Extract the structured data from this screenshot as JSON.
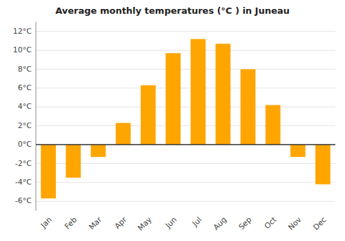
{
  "chart_data": {
    "type": "bar",
    "title": "Average monthly temperatures (°C ) in Juneau",
    "categories": [
      "Jan",
      "Feb",
      "Mar",
      "Apr",
      "May",
      "Jun",
      "Jul",
      "Aug",
      "Sep",
      "Oct",
      "Nov",
      "Dec"
    ],
    "values": [
      -5.7,
      -3.5,
      -1.3,
      2.3,
      6.3,
      9.7,
      11.2,
      10.7,
      8.0,
      4.2,
      -1.3,
      -4.2
    ],
    "color": "#FFA500",
    "ylim": [
      -7,
      13
    ],
    "yticks": [
      {
        "value": -6,
        "label": "-6°C"
      },
      {
        "value": -4,
        "label": "-4°C"
      },
      {
        "value": -2,
        "label": "-2°C"
      },
      {
        "value": 0,
        "label": "0°C"
      },
      {
        "value": 2,
        "label": "2°C"
      },
      {
        "value": 4,
        "label": "4°C"
      },
      {
        "value": 6,
        "label": "6°C"
      },
      {
        "value": 8,
        "label": "8°C"
      },
      {
        "value": 10,
        "label": "10°C"
      },
      {
        "value": 12,
        "label": "12°C"
      }
    ],
    "grid": true
  }
}
